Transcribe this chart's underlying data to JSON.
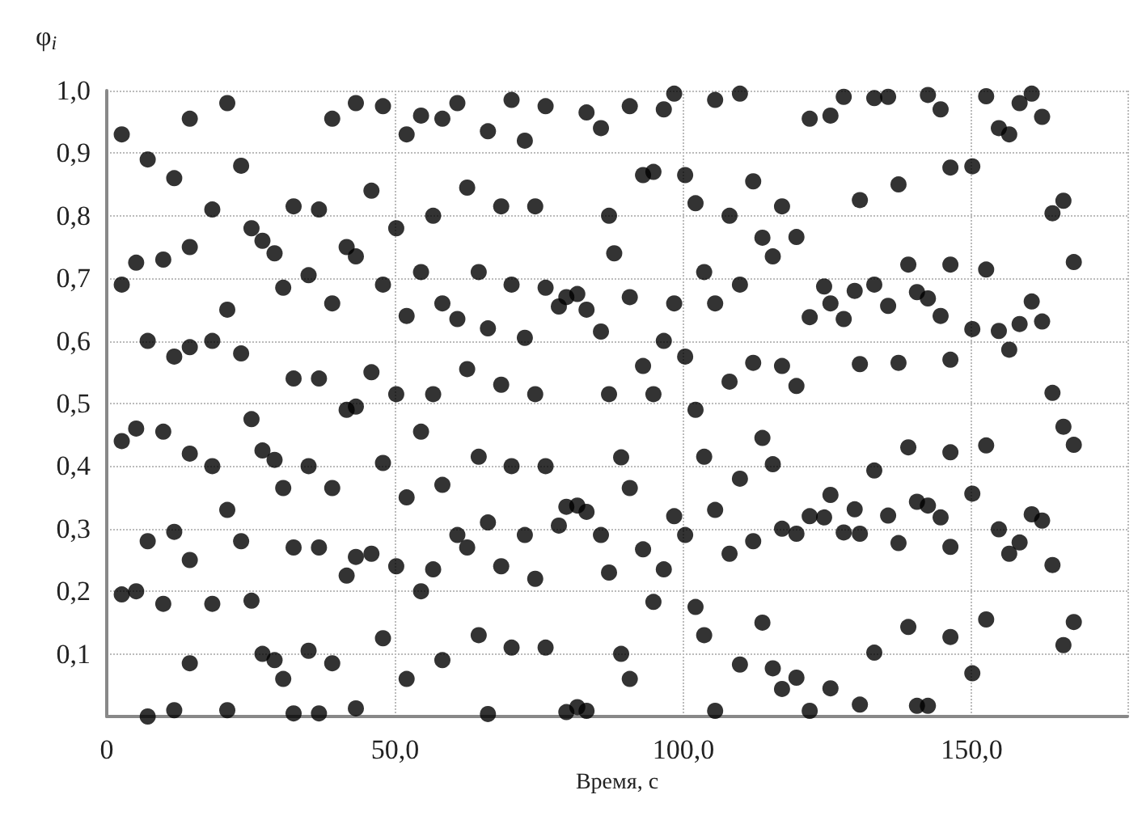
{
  "chart_data": {
    "type": "scatter",
    "xlabel": "Время, с",
    "ylabel": "φ$_{i}$",
    "marker": "circle",
    "grid": true,
    "xlim": [
      0,
      177
    ],
    "ylim": [
      0,
      1
    ],
    "xticks": [
      0,
      {
        "value": 50,
        "label": "50,0"
      },
      {
        "value": 100,
        "label": "100,0"
      },
      {
        "value": 150,
        "label": "150,0"
      }
    ],
    "yticks": [
      {
        "value": 0.1,
        "label": "0,1"
      },
      {
        "value": 0.2,
        "label": "0,2"
      },
      {
        "value": 0.3,
        "label": "0,3"
      },
      {
        "value": 0.4,
        "label": "0,4"
      },
      {
        "value": 0.5,
        "label": "0,5"
      },
      {
        "value": 0.6,
        "label": "0,6"
      },
      {
        "value": 0.7,
        "label": "0,7"
      },
      {
        "value": 0.8,
        "label": "0,8"
      },
      {
        "value": 0.9,
        "label": "0,9"
      },
      {
        "value": 1,
        "label": "1,0"
      }
    ],
    "series": [
      {
        "color": "#000000",
        "x": [
          2.6,
          7.1,
          11.7,
          14.4,
          20.9,
          23.3,
          18.3,
          25.1,
          27.0,
          5.1,
          9.8,
          14.4,
          2.6,
          20.9,
          7.1,
          11.7,
          14.4,
          18.3,
          23.3,
          25.1,
          2.6,
          5.1,
          9.8,
          14.4,
          18.3,
          27.0,
          20.9,
          7.1,
          11.7,
          14.4,
          23.3,
          2.6,
          5.1,
          9.8,
          18.3,
          25.1,
          27.0,
          14.4,
          7.1,
          11.7,
          20.9,
          39.1,
          43.2,
          47.9,
          52.0,
          54.5,
          32.4,
          36.8,
          45.9,
          50.2,
          56.6,
          29.1,
          30.6,
          35.0,
          39.1,
          41.6,
          43.2,
          47.9,
          52.0,
          54.5,
          32.4,
          36.8,
          45.9,
          41.6,
          43.2,
          50.2,
          56.6,
          29.1,
          30.6,
          35.0,
          39.1,
          47.9,
          52.0,
          54.5,
          32.4,
          36.8,
          41.6,
          43.2,
          45.9,
          50.2,
          54.5,
          56.6,
          29.1,
          30.6,
          35.0,
          39.1,
          47.9,
          52.0,
          32.4,
          36.8,
          43.2,
          58.2,
          60.8,
          66.1,
          70.2,
          72.5,
          76.1,
          83.2,
          85.7,
          62.5,
          68.4,
          74.3,
          87.1,
          88.0,
          64.5,
          70.2,
          76.1,
          78.4,
          79.7,
          81.6,
          83.2,
          85.7,
          58.2,
          60.8,
          66.1,
          72.5,
          62.5,
          68.4,
          74.3,
          87.1,
          64.5,
          70.2,
          76.1,
          58.2,
          66.1,
          60.8,
          62.5,
          72.5,
          78.4,
          79.7,
          81.6,
          83.2,
          85.7,
          68.4,
          74.3,
          87.1,
          64.5,
          58.2,
          70.2,
          76.1,
          66.1,
          79.7,
          81.6,
          83.2,
          90.7,
          96.6,
          98.4,
          105.5,
          109.8,
          93.0,
          94.8,
          100.3,
          102.1,
          108.0,
          112.1,
          117.1,
          113.7,
          115.5,
          103.6,
          90.7,
          98.4,
          105.5,
          109.8,
          96.6,
          93.0,
          100.3,
          112.1,
          117.1,
          108.0,
          94.8,
          102.1,
          89.2,
          103.6,
          113.7,
          115.5,
          90.7,
          109.8,
          98.4,
          105.5,
          100.3,
          93.0,
          108.0,
          112.1,
          117.1,
          96.6,
          94.8,
          102.1,
          113.7,
          103.6,
          89.2,
          90.7,
          109.8,
          115.5,
          117.1,
          105.5,
          121.9,
          125.5,
          127.8,
          133.1,
          135.5,
          142.4,
          144.6,
          146.3,
          130.6,
          137.3,
          119.6,
          139.0,
          146.3,
          124.4,
          129.7,
          133.1,
          125.5,
          121.9,
          127.8,
          135.5,
          140.5,
          142.4,
          144.6,
          119.6,
          130.6,
          137.3,
          146.3,
          139.0,
          146.3,
          133.1,
          125.5,
          129.7,
          121.9,
          124.4,
          140.5,
          142.4,
          144.6,
          119.6,
          127.8,
          130.6,
          135.5,
          137.3,
          146.3,
          139.0,
          146.3,
          133.1,
          119.6,
          125.5,
          121.9,
          130.6,
          140.5,
          142.4,
          152.5,
          154.7,
          156.5,
          158.3,
          160.4,
          162.2,
          150.1,
          164.0,
          165.9,
          152.5,
          167.7,
          160.4,
          150.1,
          154.7,
          158.3,
          162.2,
          156.5,
          164.0,
          165.9,
          167.7,
          152.5,
          150.1,
          160.4,
          162.2,
          154.7,
          158.3,
          156.5,
          164.0,
          152.5,
          167.7,
          165.9,
          150.1
        ],
        "values": [
          0.93,
          0.89,
          0.86,
          0.955,
          0.98,
          0.88,
          0.81,
          0.78,
          0.76,
          0.725,
          0.73,
          0.75,
          0.69,
          0.65,
          0.6,
          0.575,
          0.59,
          0.6,
          0.58,
          0.475,
          0.44,
          0.46,
          0.455,
          0.42,
          0.4,
          0.425,
          0.33,
          0.28,
          0.295,
          0.25,
          0.28,
          0.195,
          0.2,
          0.18,
          0.18,
          0.185,
          0.1,
          0.085,
          0.0,
          0.01,
          0.01,
          0.955,
          0.98,
          0.975,
          0.93,
          0.96,
          0.815,
          0.81,
          0.84,
          0.78,
          0.8,
          0.74,
          0.685,
          0.705,
          0.66,
          0.75,
          0.735,
          0.69,
          0.64,
          0.71,
          0.54,
          0.54,
          0.55,
          0.49,
          0.495,
          0.515,
          0.515,
          0.41,
          0.365,
          0.4,
          0.365,
          0.405,
          0.35,
          0.455,
          0.27,
          0.27,
          0.225,
          0.255,
          0.26,
          0.24,
          0.2,
          0.235,
          0.09,
          0.06,
          0.105,
          0.085,
          0.125,
          0.06,
          0.005,
          0.005,
          0.013,
          0.955,
          0.98,
          0.935,
          0.985,
          0.92,
          0.975,
          0.965,
          0.94,
          0.845,
          0.815,
          0.815,
          0.8,
          0.74,
          0.71,
          0.69,
          0.685,
          0.655,
          0.67,
          0.675,
          0.65,
          0.615,
          0.66,
          0.635,
          0.62,
          0.605,
          0.555,
          0.53,
          0.515,
          0.515,
          0.415,
          0.4,
          0.4,
          0.37,
          0.31,
          0.29,
          0.27,
          0.29,
          0.305,
          0.335,
          0.337,
          0.327,
          0.29,
          0.24,
          0.22,
          0.23,
          0.13,
          0.09,
          0.11,
          0.11,
          0.004,
          0.007,
          0.015,
          0.009,
          0.975,
          0.97,
          0.995,
          0.985,
          0.995,
          0.865,
          0.87,
          0.865,
          0.82,
          0.8,
          0.855,
          0.815,
          0.765,
          0.735,
          0.71,
          0.67,
          0.66,
          0.66,
          0.69,
          0.6,
          0.56,
          0.575,
          0.565,
          0.56,
          0.535,
          0.515,
          0.49,
          0.414,
          0.415,
          0.445,
          0.403,
          0.365,
          0.38,
          0.32,
          0.33,
          0.29,
          0.267,
          0.26,
          0.28,
          0.3,
          0.235,
          0.183,
          0.175,
          0.15,
          0.13,
          0.1,
          0.06,
          0.083,
          0.077,
          0.044,
          0.009,
          0.955,
          0.96,
          0.99,
          0.988,
          0.99,
          0.993,
          0.97,
          0.877,
          0.825,
          0.85,
          0.766,
          0.722,
          0.722,
          0.687,
          0.68,
          0.69,
          0.66,
          0.638,
          0.635,
          0.656,
          0.678,
          0.668,
          0.64,
          0.528,
          0.563,
          0.565,
          0.57,
          0.43,
          0.422,
          0.393,
          0.354,
          0.331,
          0.32,
          0.318,
          0.343,
          0.337,
          0.318,
          0.292,
          0.294,
          0.292,
          0.321,
          0.277,
          0.271,
          0.143,
          0.127,
          0.102,
          0.062,
          0.045,
          0.009,
          0.019,
          0.017,
          0.017,
          0.991,
          0.94,
          0.93,
          0.98,
          0.995,
          0.958,
          0.879,
          0.804,
          0.824,
          0.714,
          0.726,
          0.663,
          0.619,
          0.616,
          0.627,
          0.631,
          0.586,
          0.517,
          0.463,
          0.434,
          0.433,
          0.356,
          0.323,
          0.313,
          0.299,
          0.278,
          0.26,
          0.242,
          0.155,
          0.151,
          0.114,
          0.069
        ]
      }
    ]
  }
}
